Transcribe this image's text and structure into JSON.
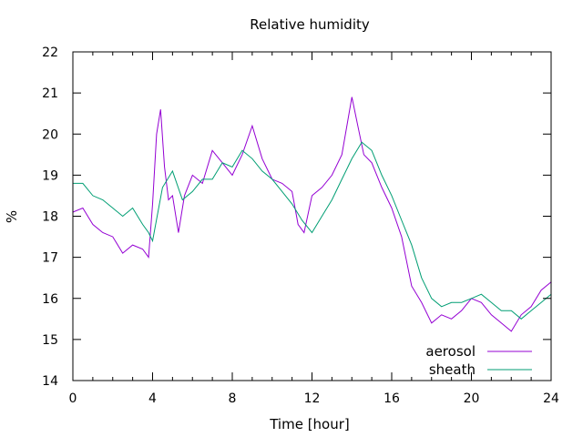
{
  "chart_data": {
    "type": "line",
    "title": "Relative humidity",
    "xlabel": "Time [hour]",
    "ylabel": "%",
    "xlim": [
      0,
      24
    ],
    "ylim": [
      14,
      22
    ],
    "xticks": [
      0,
      4,
      8,
      12,
      16,
      20,
      24
    ],
    "yticks": [
      14,
      15,
      16,
      17,
      18,
      19,
      20,
      21,
      22
    ],
    "grid": false,
    "legend_position": "bottom-right",
    "series": [
      {
        "name": "aerosol",
        "color": "#9400d3",
        "x": [
          0,
          0.5,
          1,
          1.5,
          2,
          2.5,
          3,
          3.5,
          3.8,
          4,
          4.2,
          4.4,
          4.6,
          4.8,
          5,
          5.3,
          5.6,
          6,
          6.5,
          7,
          7.5,
          8,
          8.5,
          9,
          9.5,
          10,
          10.5,
          11,
          11.3,
          11.6,
          12,
          12.5,
          13,
          13.5,
          14,
          14.3,
          14.6,
          15,
          15.5,
          16,
          16.5,
          17,
          17.5,
          18,
          18.5,
          19,
          19.5,
          20,
          20.5,
          21,
          21.5,
          22,
          22.5,
          23,
          23.5,
          24
        ],
        "y": [
          18.1,
          18.2,
          17.8,
          17.6,
          17.5,
          17.1,
          17.3,
          17.2,
          17.0,
          18.3,
          20.0,
          20.6,
          19.2,
          18.4,
          18.5,
          17.6,
          18.5,
          19.0,
          18.8,
          19.6,
          19.3,
          19.0,
          19.5,
          20.2,
          19.4,
          18.9,
          18.8,
          18.6,
          17.8,
          17.6,
          18.5,
          18.7,
          19.0,
          19.5,
          20.9,
          20.2,
          19.5,
          19.3,
          18.7,
          18.2,
          17.5,
          16.3,
          15.9,
          15.4,
          15.6,
          15.5,
          15.7,
          16.0,
          15.9,
          15.6,
          15.4,
          15.2,
          15.6,
          15.8,
          16.2,
          16.4
        ]
      },
      {
        "name": "sheath",
        "color": "#009e73",
        "x": [
          0,
          0.5,
          1,
          1.5,
          2,
          2.5,
          3,
          3.5,
          3.8,
          4,
          4.5,
          5,
          5.5,
          6,
          6.5,
          7,
          7.5,
          8,
          8.5,
          9,
          9.5,
          10,
          10.5,
          11,
          11.5,
          12,
          12.5,
          13,
          13.5,
          14,
          14.5,
          15,
          15.5,
          16,
          16.5,
          17,
          17.5,
          18,
          18.5,
          19,
          19.5,
          20,
          20.5,
          21,
          21.5,
          22,
          22.5,
          23,
          23.5,
          24
        ],
        "y": [
          18.8,
          18.8,
          18.5,
          18.4,
          18.2,
          18.0,
          18.2,
          17.8,
          17.6,
          17.4,
          18.7,
          19.1,
          18.4,
          18.6,
          18.9,
          18.9,
          19.3,
          19.2,
          19.6,
          19.4,
          19.1,
          18.9,
          18.6,
          18.3,
          17.9,
          17.6,
          18.0,
          18.4,
          18.9,
          19.4,
          19.8,
          19.6,
          19.0,
          18.5,
          17.9,
          17.3,
          16.5,
          16.0,
          15.8,
          15.9,
          15.9,
          16.0,
          16.1,
          15.9,
          15.7,
          15.7,
          15.5,
          15.7,
          15.9,
          16.1
        ]
      }
    ]
  }
}
